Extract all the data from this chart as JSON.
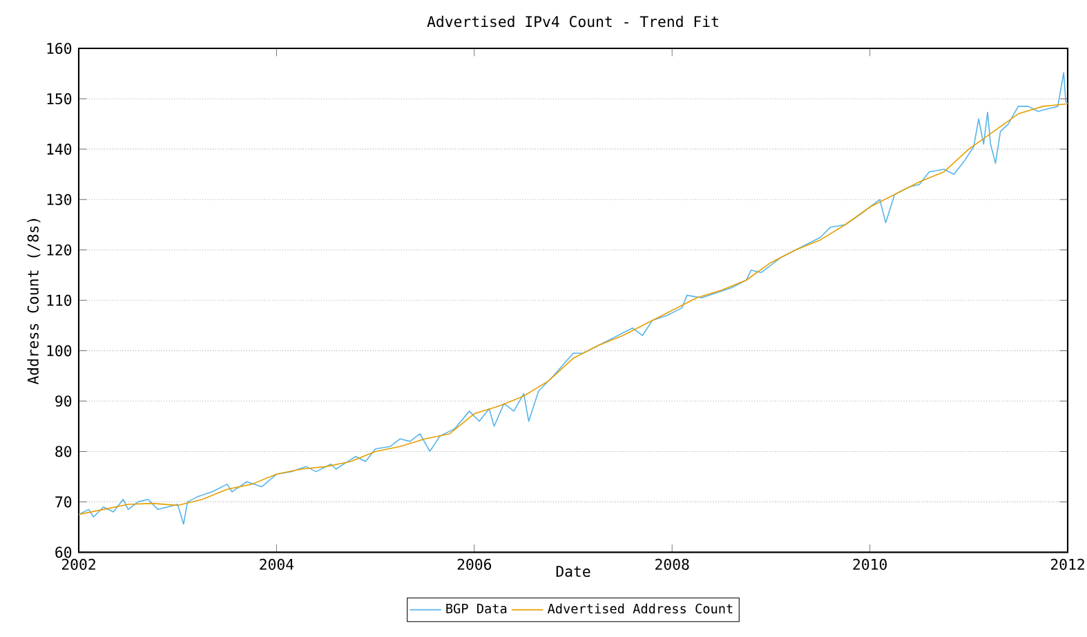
{
  "chart_data": {
    "type": "line",
    "title": "Advertised IPv4 Count - Trend Fit",
    "xlabel": "Date",
    "ylabel": "Address Count (/8s)",
    "xlim": [
      2002,
      2012
    ],
    "ylim": [
      60,
      160
    ],
    "xticks": [
      2002,
      2004,
      2006,
      2008,
      2010,
      2012
    ],
    "yticks": [
      60,
      70,
      80,
      90,
      100,
      110,
      120,
      130,
      140,
      150,
      160
    ],
    "grid": "y",
    "legend": "bottom",
    "line_style": "solid",
    "series": [
      {
        "name": "BGP Data",
        "color": "#56b4e9",
        "x": [
          2002.0,
          2002.1,
          2002.15,
          2002.25,
          2002.35,
          2002.45,
          2002.5,
          2002.6,
          2002.7,
          2002.8,
          2002.9,
          2003.0,
          2003.06,
          2003.1,
          2003.2,
          2003.35,
          2003.5,
          2003.55,
          2003.7,
          2003.85,
          2004.0,
          2004.15,
          2004.3,
          2004.4,
          2004.55,
          2004.6,
          2004.8,
          2004.9,
          2005.0,
          2005.15,
          2005.25,
          2005.35,
          2005.45,
          2005.55,
          2005.65,
          2005.8,
          2005.95,
          2006.05,
          2006.15,
          2006.2,
          2006.3,
          2006.4,
          2006.5,
          2006.55,
          2006.65,
          2006.8,
          2007.0,
          2007.1,
          2007.25,
          2007.4,
          2007.6,
          2007.7,
          2007.8,
          2007.95,
          2008.1,
          2008.15,
          2008.3,
          2008.45,
          2008.6,
          2008.75,
          2008.8,
          2008.9,
          2009.1,
          2009.3,
          2009.5,
          2009.6,
          2009.75,
          2009.9,
          2010.0,
          2010.1,
          2010.16,
          2010.25,
          2010.4,
          2010.5,
          2010.6,
          2010.75,
          2010.85,
          2010.95,
          2011.05,
          2011.1,
          2011.15,
          2011.19,
          2011.22,
          2011.27,
          2011.32,
          2011.4,
          2011.5,
          2011.6,
          2011.7,
          2011.8,
          2011.9,
          2011.96,
          2011.98,
          2012.0
        ],
        "values": [
          67.5,
          68.5,
          67,
          69,
          68,
          70.5,
          68.5,
          70,
          70.5,
          68.5,
          69,
          69.5,
          65.6,
          70,
          71,
          72,
          73.5,
          72,
          74,
          73,
          75.5,
          76,
          77,
          76,
          77.5,
          76.5,
          79,
          78,
          80.5,
          81,
          82.5,
          82,
          83.5,
          80,
          83,
          84.5,
          88,
          86,
          88.5,
          85,
          89.5,
          88,
          91.5,
          86,
          92,
          95,
          99.5,
          99.5,
          101,
          102.5,
          104.5,
          103,
          106,
          107,
          108.5,
          111,
          110.5,
          111.5,
          112.5,
          114,
          116,
          115.5,
          118.5,
          120.5,
          122.5,
          124.5,
          125,
          127,
          128.5,
          130,
          125.4,
          131,
          132.5,
          133,
          135.5,
          136,
          135,
          137.5,
          140.5,
          146,
          141,
          147.3,
          141,
          137.2,
          143.5,
          145,
          148.5,
          148.5,
          147.5,
          148,
          148.5,
          155.2,
          149.5,
          149
        ]
      },
      {
        "name": "Advertised Address Count",
        "color": "#e69f00",
        "x": [
          2002.0,
          2002.25,
          2002.5,
          2002.75,
          2003.0,
          2003.25,
          2003.5,
          2003.75,
          2004.0,
          2004.25,
          2004.5,
          2004.75,
          2005.0,
          2005.25,
          2005.5,
          2005.75,
          2006.0,
          2006.25,
          2006.5,
          2006.75,
          2007.0,
          2007.25,
          2007.5,
          2007.75,
          2008.0,
          2008.25,
          2008.5,
          2008.75,
          2009.0,
          2009.25,
          2009.5,
          2009.75,
          2010.0,
          2010.25,
          2010.5,
          2010.75,
          2011.0,
          2011.25,
          2011.5,
          2011.75,
          2012.0
        ],
        "values": [
          67.5,
          68.5,
          69.5,
          69.7,
          69.3,
          70.5,
          72.5,
          73.5,
          75.5,
          76.5,
          77,
          78,
          80,
          81,
          82.5,
          83.5,
          87.5,
          89,
          91,
          94,
          98.5,
          101,
          103,
          105.5,
          108,
          110.5,
          112,
          114,
          117.5,
          120,
          122,
          125,
          128.5,
          131,
          133.5,
          135.5,
          140,
          143.5,
          147,
          148.5,
          149
        ]
      }
    ]
  }
}
